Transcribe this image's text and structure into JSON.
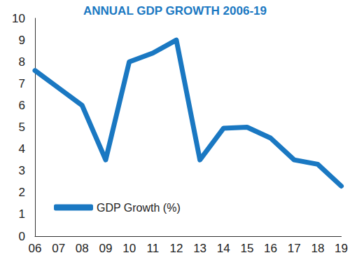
{
  "chart_data": {
    "type": "line",
    "title": "ANNUAL GDP GROWTH 2006-19",
    "categories": [
      "06",
      "07",
      "08",
      "09",
      "10",
      "11",
      "12",
      "13",
      "14",
      "15",
      "16",
      "17",
      "18",
      "19"
    ],
    "series": [
      {
        "name": "GDP Growth (%)",
        "color": "#1a78c2",
        "values": [
          7.6,
          6.8,
          6.0,
          3.5,
          8.0,
          8.4,
          9.0,
          3.5,
          4.95,
          5.0,
          4.5,
          3.5,
          3.3,
          2.3
        ]
      }
    ],
    "ylim": [
      0,
      10
    ],
    "yticks": [
      0,
      1,
      2,
      3,
      4,
      5,
      6,
      7,
      8,
      9,
      10
    ],
    "grid": false,
    "legend": "lower left"
  }
}
